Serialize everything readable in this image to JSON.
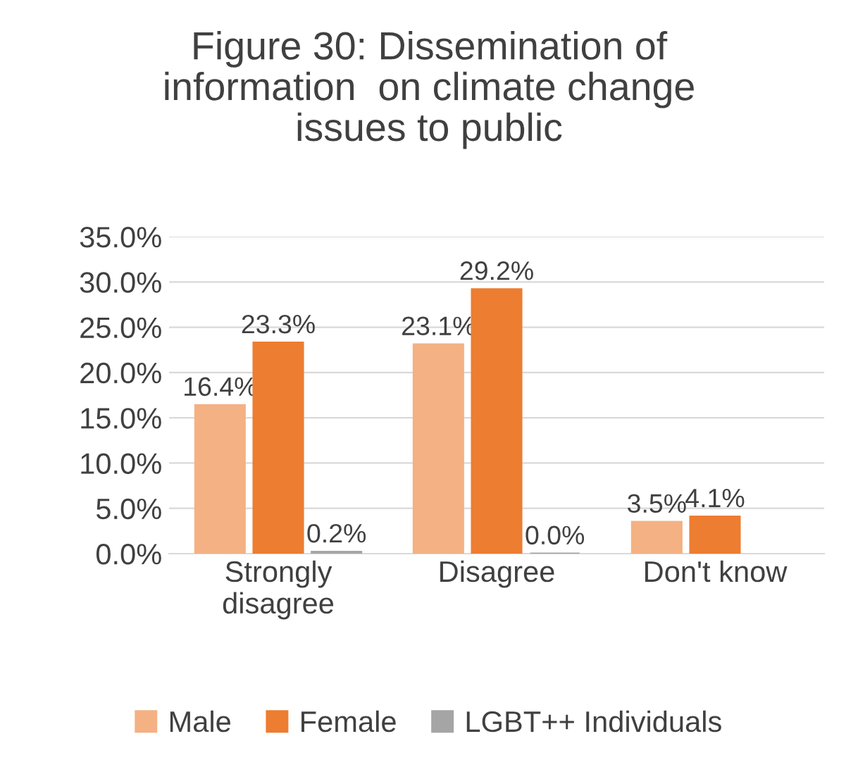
{
  "chart_data": {
    "type": "bar",
    "title": "Figure 30: Dissemination of\ninformation  on climate change\nissues to public",
    "categories": [
      "Strongly\ndisagree",
      "Disagree",
      "Don't know"
    ],
    "series": [
      {
        "name": "Male",
        "color": "#f4b183",
        "values": [
          16.4,
          23.1,
          3.5
        ],
        "value_labels": [
          "16.4%",
          "23.1%",
          "3.5%"
        ]
      },
      {
        "name": "Female",
        "color": "#ed7d31",
        "values": [
          23.3,
          29.2,
          4.1
        ],
        "value_labels": [
          "23.3%",
          "29.2%",
          "4.1%"
        ]
      },
      {
        "name": "LGBT++ Individuals",
        "color": "#a5a5a5",
        "values": [
          0.2,
          0.0,
          null
        ],
        "value_labels": [
          "0.2%",
          "0.0%",
          null
        ]
      }
    ],
    "ylim": [
      0,
      35
    ],
    "yticks": [
      {
        "value": 0,
        "label": "0.0%"
      },
      {
        "value": 5,
        "label": "5.0%"
      },
      {
        "value": 10,
        "label": "10.0%"
      },
      {
        "value": 15,
        "label": "15.0%"
      },
      {
        "value": 20,
        "label": "20.0%"
      },
      {
        "value": 25,
        "label": "25.0%"
      },
      {
        "value": 30,
        "label": "30.0%"
      },
      {
        "value": 35,
        "label": "35.0%"
      }
    ],
    "grid": "y",
    "legend": "bottom"
  }
}
